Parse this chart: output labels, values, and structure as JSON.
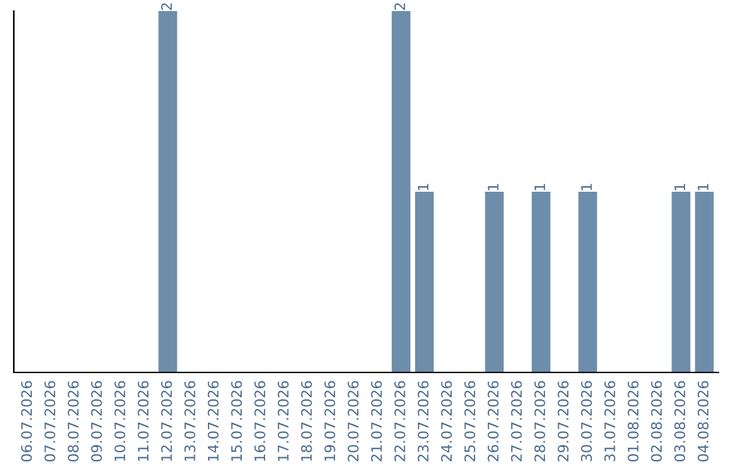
{
  "chart_data": {
    "type": "bar",
    "categories": [
      "06.07.2026",
      "07.07.2026",
      "08.07.2026",
      "09.07.2026",
      "10.07.2026",
      "11.07.2026",
      "12.07.2026",
      "13.07.2026",
      "14.07.2026",
      "15.07.2026",
      "16.07.2026",
      "17.07.2026",
      "18.07.2026",
      "19.07.2026",
      "20.07.2026",
      "21.07.2026",
      "22.07.2026",
      "23.07.2026",
      "24.07.2026",
      "25.07.2026",
      "26.07.2026",
      "27.07.2026",
      "28.07.2026",
      "29.07.2026",
      "30.07.2026",
      "31.07.2026",
      "01.08.2026",
      "02.08.2026",
      "03.08.2026",
      "04.08.2026"
    ],
    "values": [
      0,
      0,
      0,
      0,
      0,
      0,
      2,
      0,
      0,
      0,
      0,
      0,
      0,
      0,
      0,
      0,
      2,
      1,
      0,
      0,
      1,
      0,
      1,
      0,
      1,
      0,
      0,
      0,
      1,
      1
    ],
    "value_labels": [
      null,
      null,
      null,
      null,
      null,
      null,
      "2",
      null,
      null,
      null,
      null,
      null,
      null,
      null,
      null,
      null,
      "2",
      "1",
      null,
      null,
      "1",
      null,
      "1",
      null,
      "1",
      null,
      null,
      null,
      "1",
      "1"
    ],
    "color": "#6d8dab",
    "ylim": [
      0,
      2
    ],
    "tick_labels": "x",
    "grid": false
  }
}
